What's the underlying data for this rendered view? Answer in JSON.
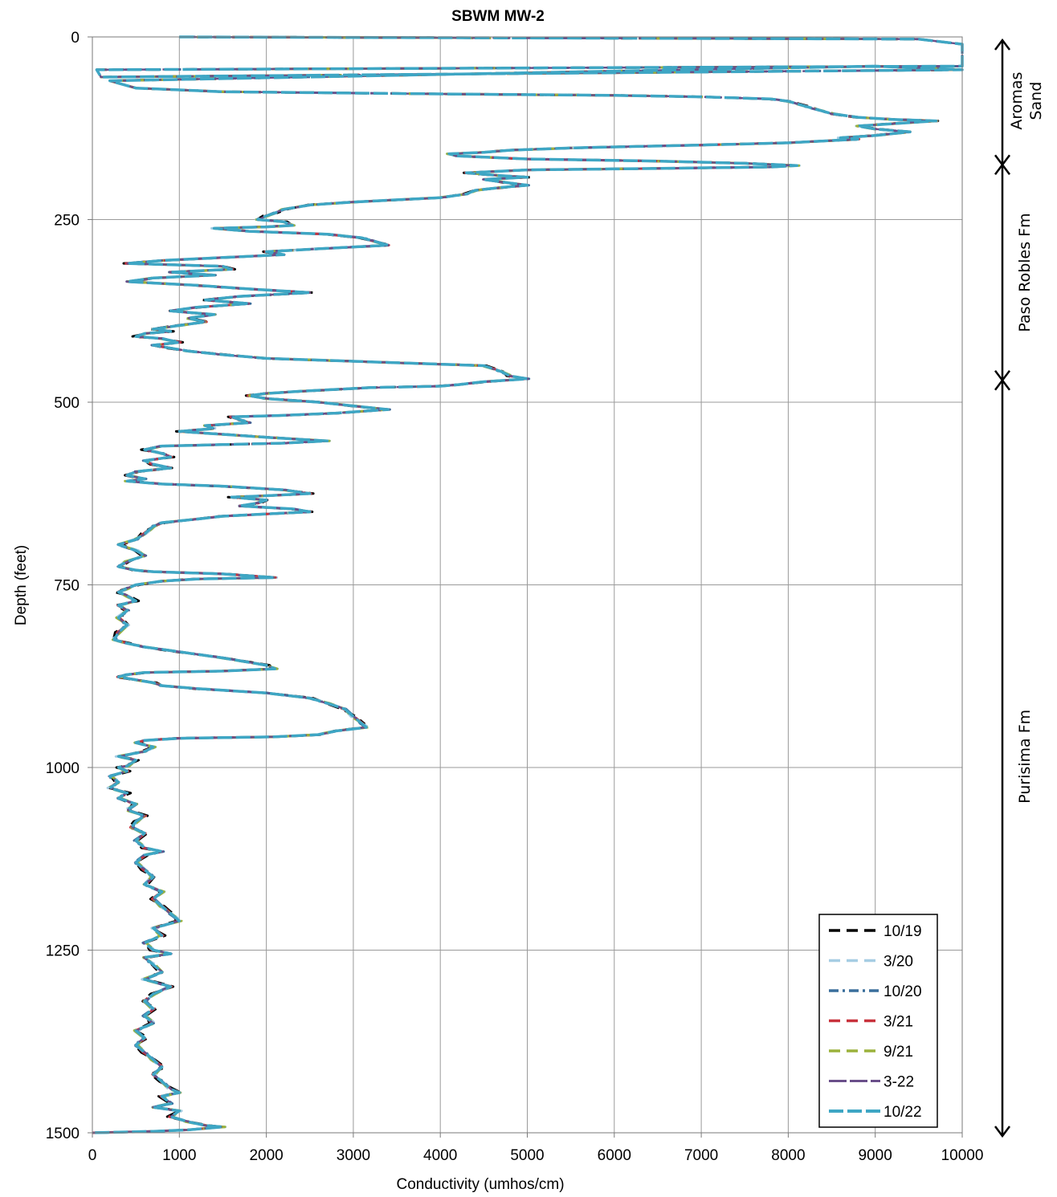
{
  "chart_data": {
    "type": "line",
    "title": "SBWM MW-2",
    "xlabel": "Conductivity (umhos/cm)",
    "ylabel": "Depth (feet)",
    "xlim": [
      0,
      10000
    ],
    "ylim": [
      1500,
      0
    ],
    "y_inverted": true,
    "grid": true,
    "legend_position": "bottom-right",
    "x_ticks": [
      "0",
      "1000",
      "2000",
      "3000",
      "4000",
      "5000",
      "6000",
      "7000",
      "8000",
      "9000",
      "10000"
    ],
    "y_ticks": [
      "0",
      "250",
      "500",
      "750",
      "1000",
      "1250",
      "1500"
    ],
    "formations": [
      {
        "name": "Aromas Sand",
        "line1": "Aromas",
        "line2": "Sand",
        "top": 0,
        "bottom": 175
      },
      {
        "name": "Paso Robles Fm",
        "line1": "Paso Robles Fm",
        "line2": "",
        "top": 175,
        "bottom": 470
      },
      {
        "name": "Purisima Fm",
        "line1": "Purisima Fm",
        "line2": "",
        "top": 470,
        "bottom": 1500
      }
    ],
    "profile": [
      [
        1000,
        0
      ],
      [
        9500,
        3
      ],
      [
        10000,
        10
      ],
      [
        10000,
        40
      ],
      [
        50,
        45
      ],
      [
        100,
        55
      ],
      [
        10000,
        45
      ],
      [
        9000,
        40
      ],
      [
        200,
        60
      ],
      [
        500,
        70
      ],
      [
        1500,
        75
      ],
      [
        4000,
        78
      ],
      [
        6000,
        80
      ],
      [
        7000,
        82
      ],
      [
        7800,
        85
      ],
      [
        8000,
        88
      ],
      [
        8200,
        95
      ],
      [
        8500,
        105
      ],
      [
        8800,
        110
      ],
      [
        9200,
        113
      ],
      [
        9700,
        115
      ],
      [
        9300,
        118
      ],
      [
        8800,
        122
      ],
      [
        9000,
        126
      ],
      [
        9400,
        130
      ],
      [
        9000,
        135
      ],
      [
        8600,
        138
      ],
      [
        8800,
        140
      ],
      [
        8000,
        145
      ],
      [
        7000,
        148
      ],
      [
        6200,
        150
      ],
      [
        5500,
        152
      ],
      [
        4800,
        155
      ],
      [
        4500,
        158
      ],
      [
        4100,
        160
      ],
      [
        4200,
        163
      ],
      [
        5000,
        167
      ],
      [
        6500,
        170
      ],
      [
        7500,
        173
      ],
      [
        8100,
        176
      ],
      [
        7800,
        178
      ],
      [
        6500,
        180
      ],
      [
        5000,
        182
      ],
      [
        4300,
        186
      ],
      [
        4700,
        190
      ],
      [
        5000,
        192
      ],
      [
        4500,
        195
      ],
      [
        4800,
        200
      ],
      [
        5000,
        203
      ],
      [
        4700,
        206
      ],
      [
        4400,
        210
      ],
      [
        4300,
        215
      ],
      [
        4000,
        220
      ],
      [
        3500,
        223
      ],
      [
        3000,
        226
      ],
      [
        2500,
        230
      ],
      [
        2200,
        236
      ],
      [
        2100,
        241
      ],
      [
        2000,
        245
      ],
      [
        1900,
        250
      ],
      [
        2200,
        253
      ],
      [
        2300,
        258
      ],
      [
        2000,
        260
      ],
      [
        1400,
        262
      ],
      [
        1800,
        266
      ],
      [
        2700,
        270
      ],
      [
        3100,
        275
      ],
      [
        3400,
        285
      ],
      [
        2600,
        290
      ],
      [
        2000,
        294
      ],
      [
        2200,
        298
      ],
      [
        1500,
        302
      ],
      [
        800,
        306
      ],
      [
        400,
        310
      ],
      [
        1500,
        314
      ],
      [
        1600,
        318
      ],
      [
        900,
        322
      ],
      [
        1400,
        326
      ],
      [
        700,
        330
      ],
      [
        400,
        335
      ],
      [
        1200,
        340
      ],
      [
        1800,
        345
      ],
      [
        2500,
        350
      ],
      [
        1700,
        355
      ],
      [
        1300,
        360
      ],
      [
        1800,
        365
      ],
      [
        1200,
        370
      ],
      [
        900,
        375
      ],
      [
        1400,
        380
      ],
      [
        1100,
        385
      ],
      [
        1300,
        390
      ],
      [
        1000,
        395
      ],
      [
        700,
        400
      ],
      [
        900,
        403
      ],
      [
        600,
        406
      ],
      [
        500,
        410
      ],
      [
        800,
        413
      ],
      [
        1000,
        418
      ],
      [
        700,
        422
      ],
      [
        900,
        426
      ],
      [
        1100,
        430
      ],
      [
        1500,
        435
      ],
      [
        2000,
        440
      ],
      [
        3000,
        444
      ],
      [
        4500,
        450
      ],
      [
        4700,
        458
      ],
      [
        4800,
        464
      ],
      [
        5000,
        468
      ],
      [
        4500,
        472
      ],
      [
        4200,
        476
      ],
      [
        4000,
        478
      ],
      [
        3200,
        480
      ],
      [
        2400,
        485
      ],
      [
        2000,
        488
      ],
      [
        1800,
        491
      ],
      [
        2000,
        495
      ],
      [
        2600,
        500
      ],
      [
        3000,
        505
      ],
      [
        3400,
        510
      ],
      [
        2800,
        515
      ],
      [
        2200,
        518
      ],
      [
        1600,
        520
      ],
      [
        1800,
        528
      ],
      [
        1300,
        532
      ],
      [
        1400,
        536
      ],
      [
        1000,
        540
      ],
      [
        1500,
        544
      ],
      [
        2000,
        548
      ],
      [
        2700,
        553
      ],
      [
        2200,
        556
      ],
      [
        1500,
        558
      ],
      [
        800,
        560
      ],
      [
        600,
        565
      ],
      [
        800,
        570
      ],
      [
        900,
        575
      ],
      [
        600,
        580
      ],
      [
        700,
        585
      ],
      [
        900,
        590
      ],
      [
        500,
        595
      ],
      [
        400,
        600
      ],
      [
        600,
        605
      ],
      [
        400,
        608
      ],
      [
        800,
        612
      ],
      [
        1500,
        615
      ],
      [
        2200,
        620
      ],
      [
        2500,
        625
      ],
      [
        2000,
        628
      ],
      [
        1600,
        630
      ],
      [
        2000,
        634
      ],
      [
        1900,
        638
      ],
      [
        1700,
        642
      ],
      [
        2300,
        646
      ],
      [
        2500,
        650
      ],
      [
        2000,
        653
      ],
      [
        1500,
        656
      ],
      [
        1200,
        660
      ],
      [
        800,
        665
      ],
      [
        700,
        670
      ],
      [
        600,
        680
      ],
      [
        500,
        688
      ],
      [
        300,
        695
      ],
      [
        500,
        703
      ],
      [
        600,
        710
      ],
      [
        400,
        718
      ],
      [
        300,
        725
      ],
      [
        500,
        730
      ],
      [
        700,
        732
      ],
      [
        1500,
        735
      ],
      [
        2100,
        740
      ],
      [
        1200,
        742
      ],
      [
        800,
        745
      ],
      [
        500,
        750
      ],
      [
        400,
        755
      ],
      [
        300,
        760
      ],
      [
        400,
        765
      ],
      [
        500,
        772
      ],
      [
        300,
        778
      ],
      [
        400,
        785
      ],
      [
        300,
        795
      ],
      [
        400,
        805
      ],
      [
        300,
        815
      ],
      [
        250,
        825
      ],
      [
        400,
        830
      ],
      [
        600,
        835
      ],
      [
        900,
        840
      ],
      [
        1500,
        850
      ],
      [
        2000,
        860
      ],
      [
        2100,
        865
      ],
      [
        1500,
        868
      ],
      [
        600,
        870
      ],
      [
        400,
        873
      ],
      [
        300,
        876
      ],
      [
        500,
        880
      ],
      [
        700,
        884
      ],
      [
        800,
        888
      ],
      [
        1200,
        892
      ],
      [
        2000,
        898
      ],
      [
        2500,
        905
      ],
      [
        2700,
        912
      ],
      [
        2900,
        920
      ],
      [
        3000,
        930
      ],
      [
        3100,
        940
      ],
      [
        3150,
        945
      ],
      [
        2800,
        950
      ],
      [
        2600,
        955
      ],
      [
        2100,
        958
      ],
      [
        1000,
        960
      ],
      [
        600,
        963
      ],
      [
        500,
        966
      ],
      [
        700,
        972
      ],
      [
        600,
        978
      ],
      [
        300,
        985
      ],
      [
        500,
        990
      ],
      [
        400,
        998
      ],
      [
        300,
        1000
      ],
      [
        400,
        1005
      ],
      [
        200,
        1012
      ],
      [
        300,
        1020
      ],
      [
        200,
        1028
      ],
      [
        400,
        1035
      ],
      [
        300,
        1042
      ],
      [
        500,
        1050
      ],
      [
        400,
        1058
      ],
      [
        600,
        1066
      ],
      [
        500,
        1074
      ],
      [
        450,
        1082
      ],
      [
        600,
        1090
      ],
      [
        500,
        1100
      ],
      [
        600,
        1110
      ],
      [
        800,
        1115
      ],
      [
        600,
        1120
      ],
      [
        500,
        1130
      ],
      [
        600,
        1140
      ],
      [
        700,
        1150
      ],
      [
        600,
        1160
      ],
      [
        800,
        1170
      ],
      [
        700,
        1180
      ],
      [
        800,
        1190
      ],
      [
        900,
        1200
      ],
      [
        1000,
        1210
      ],
      [
        700,
        1220
      ],
      [
        800,
        1230
      ],
      [
        600,
        1240
      ],
      [
        700,
        1250
      ],
      [
        900,
        1255
      ],
      [
        600,
        1260
      ],
      [
        700,
        1270
      ],
      [
        800,
        1280
      ],
      [
        600,
        1290
      ],
      [
        900,
        1300
      ],
      [
        700,
        1310
      ],
      [
        600,
        1320
      ],
      [
        700,
        1330
      ],
      [
        600,
        1340
      ],
      [
        700,
        1350
      ],
      [
        500,
        1360
      ],
      [
        600,
        1370
      ],
      [
        500,
        1380
      ],
      [
        600,
        1390
      ],
      [
        700,
        1400
      ],
      [
        800,
        1410
      ],
      [
        700,
        1420
      ],
      [
        800,
        1430
      ],
      [
        900,
        1440
      ],
      [
        1000,
        1445
      ],
      [
        800,
        1450
      ],
      [
        900,
        1460
      ],
      [
        700,
        1465
      ],
      [
        1000,
        1470
      ],
      [
        900,
        1478
      ],
      [
        1100,
        1485
      ],
      [
        1300,
        1490
      ],
      [
        1500,
        1492
      ],
      [
        1100,
        1496
      ],
      [
        700,
        1498
      ],
      [
        0,
        1500
      ]
    ],
    "series": [
      {
        "name": "10/19",
        "color": "#000000",
        "dash": "14,8",
        "width": 3,
        "jitter": 40
      },
      {
        "name": "3/20",
        "color": "#a6cde3",
        "dash": "14,8",
        "width": 3,
        "jitter": -30
      },
      {
        "name": "10/20",
        "color": "#3a6e9c",
        "dash": "12,5,3,5",
        "width": 3,
        "jitter": 20
      },
      {
        "name": "3/21",
        "color": "#c8323c",
        "dash": "14,8",
        "width": 3,
        "jitter": -15
      },
      {
        "name": "9/21",
        "color": "#9bb23b",
        "dash": "14,8",
        "width": 3,
        "jitter": 25
      },
      {
        "name": "3-22",
        "color": "#6a4f8a",
        "dash": "22,4",
        "width": 2.5,
        "jitter": -10
      },
      {
        "name": "10/22",
        "color": "#3ea6c4",
        "dash": "18,5",
        "width": 3.5,
        "jitter": 0
      }
    ]
  }
}
